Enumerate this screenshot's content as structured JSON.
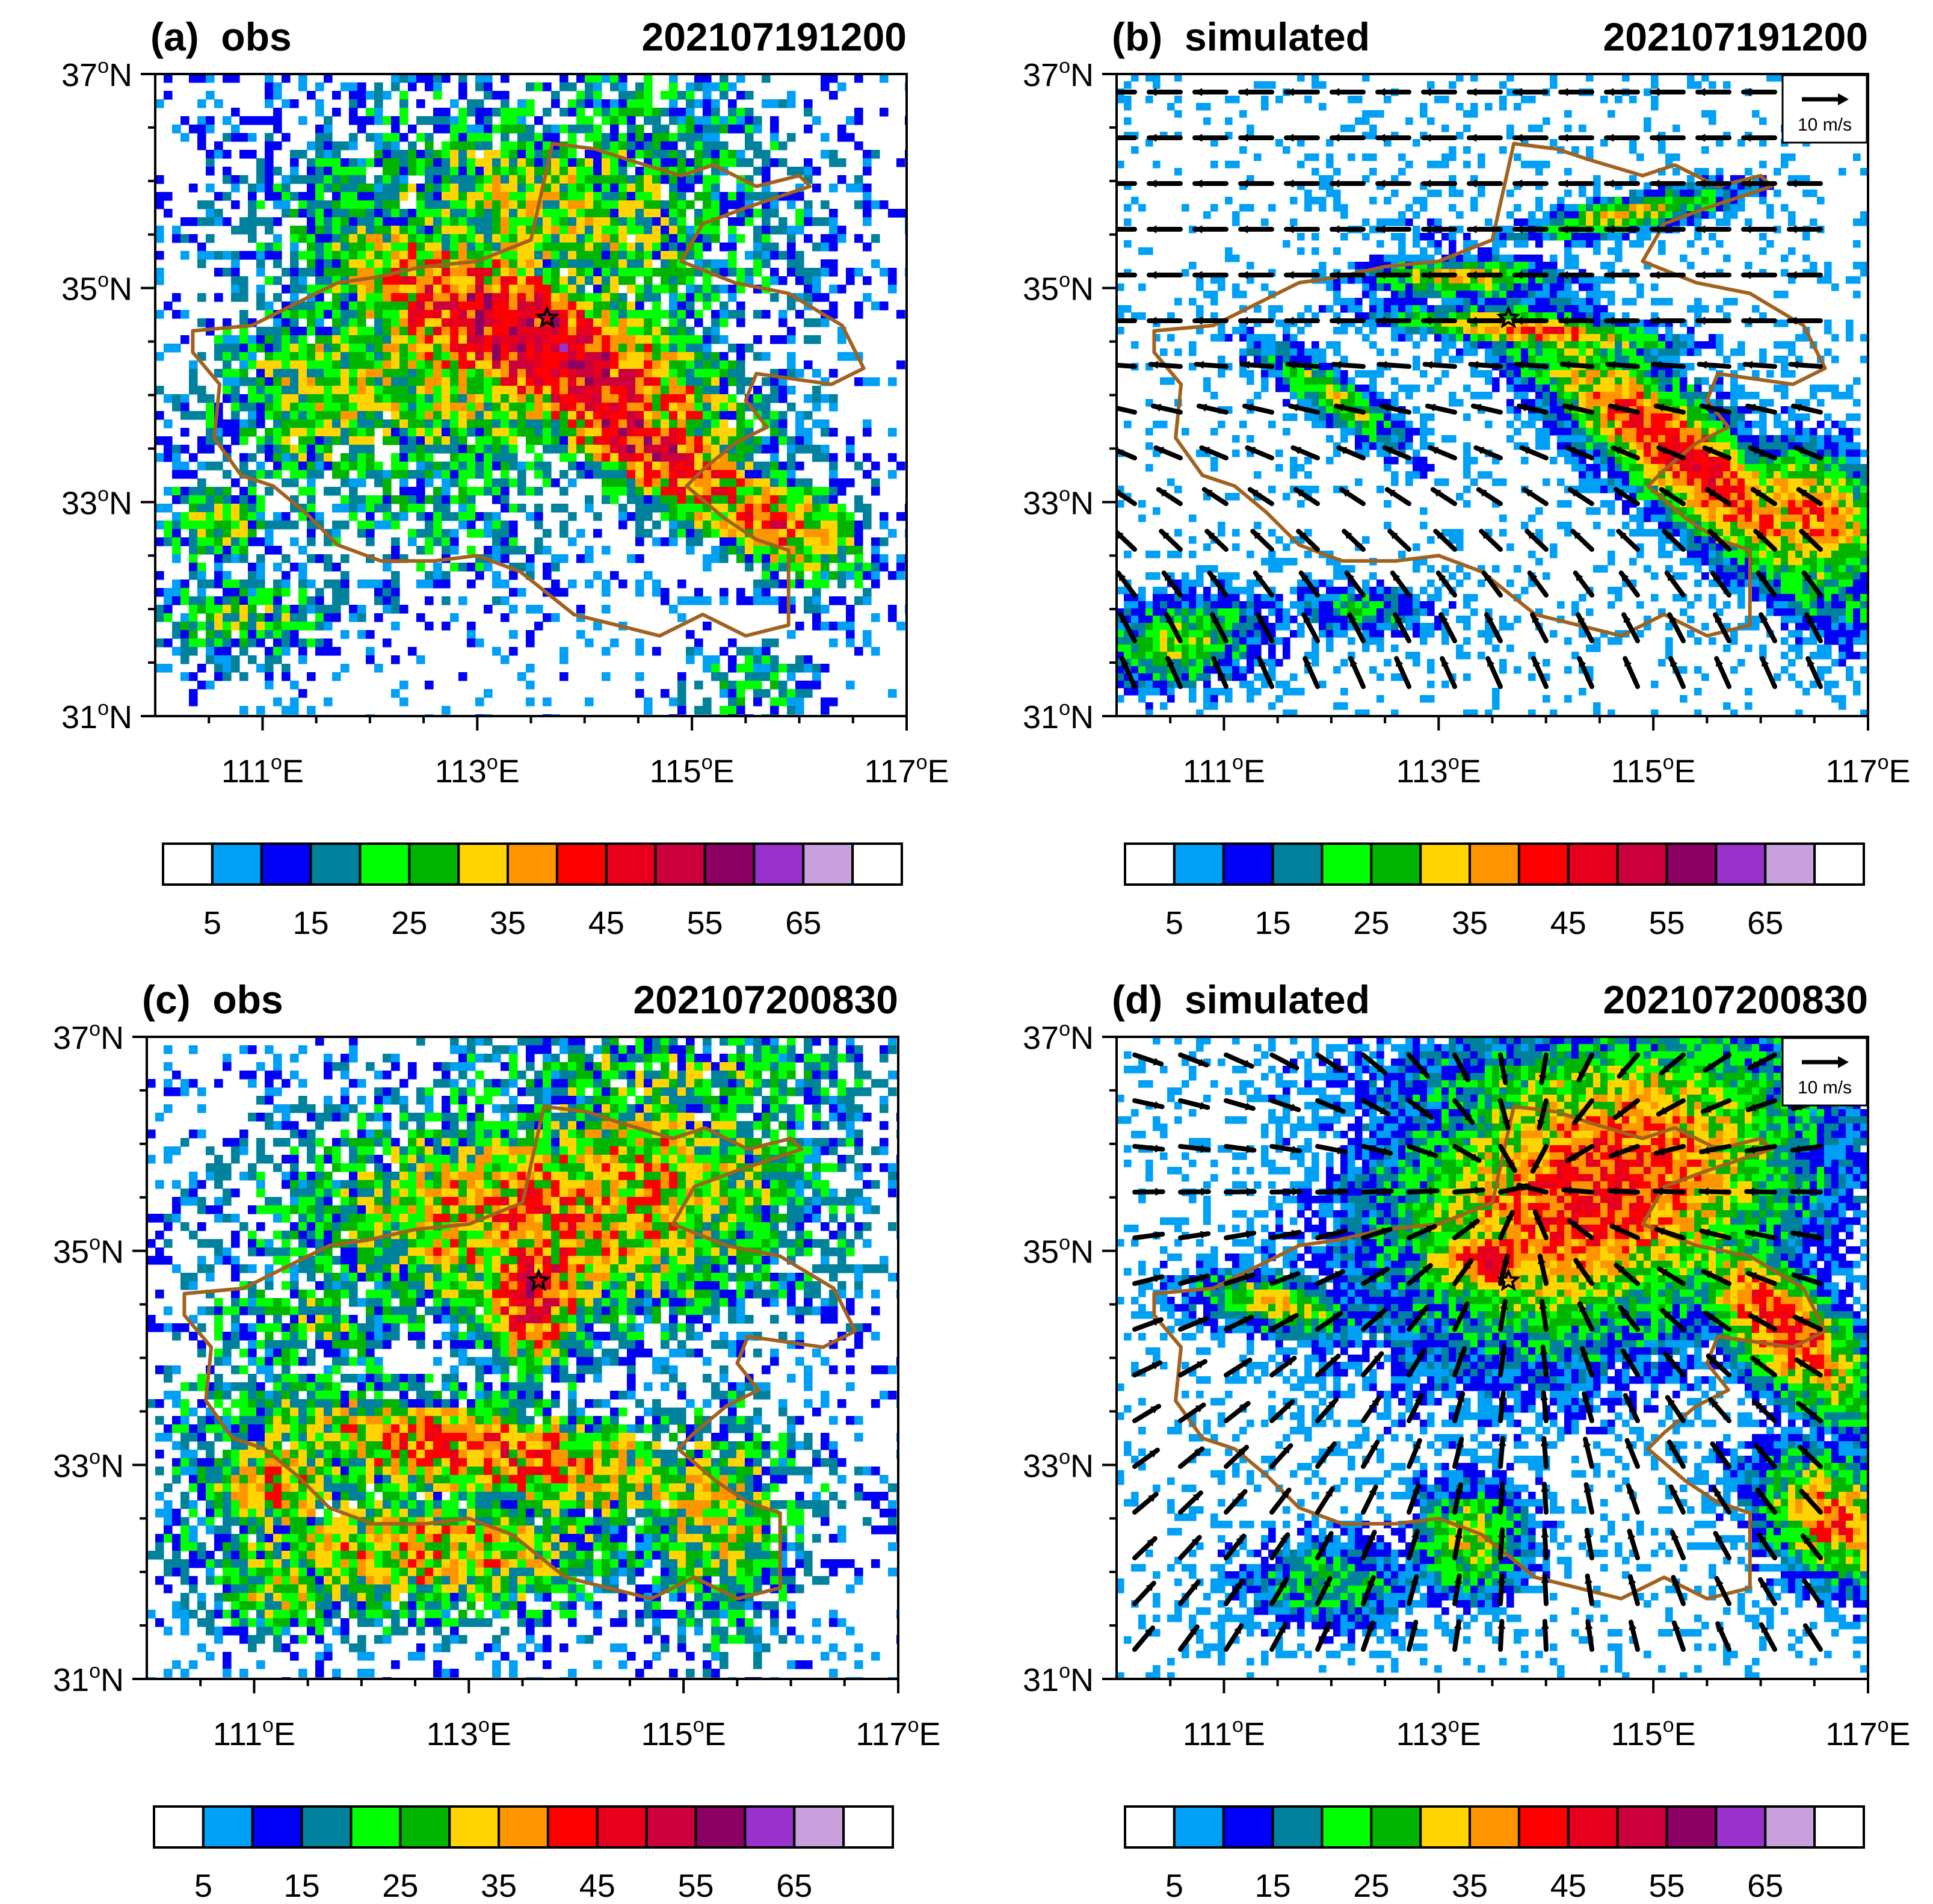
{
  "figure": {
    "panels": [
      {
        "id": "a",
        "label": "(a)  obs",
        "time": "202107191200",
        "kind": "obs",
        "has_wind": false
      },
      {
        "id": "b",
        "label": "(b)  simulated",
        "time": "202107191200",
        "kind": "sim",
        "has_wind": true,
        "wind_ref": "10 m/s",
        "wind_dir": "easterly"
      },
      {
        "id": "c",
        "label": "(c)  obs",
        "time": "202107200830",
        "kind": "obs",
        "has_wind": false
      },
      {
        "id": "d",
        "label": "(d)  simulated",
        "time": "202107200830",
        "kind": "sim",
        "has_wind": true,
        "wind_ref": "10 m/s",
        "wind_dir": "convergent"
      }
    ],
    "axes": {
      "lon_range": [
        110,
        117
      ],
      "lat_range": [
        31,
        37
      ],
      "lon_ticks": [
        {
          "value": 111,
          "deg": "111",
          "sup": "o",
          "hemi": "E"
        },
        {
          "value": 113,
          "deg": "113",
          "sup": "o",
          "hemi": "E"
        },
        {
          "value": 115,
          "deg": "115",
          "sup": "o",
          "hemi": "E"
        },
        {
          "value": 117,
          "deg": "117",
          "sup": "o",
          "hemi": "E"
        }
      ],
      "lat_ticks": [
        {
          "value": 31,
          "deg": "31",
          "sup": "o",
          "hemi": "N"
        },
        {
          "value": 33,
          "deg": "33",
          "sup": "o",
          "hemi": "N"
        },
        {
          "value": 35,
          "deg": "35",
          "sup": "o",
          "hemi": "N"
        },
        {
          "value": 37,
          "deg": "37",
          "sup": "o",
          "hemi": "N"
        }
      ]
    },
    "colorbar": {
      "colors": [
        "#ffffff",
        "#00a0f6",
        "#0000f6",
        "#00829c",
        "#00ff00",
        "#00b400",
        "#ffd400",
        "#ff9600",
        "#ff0000",
        "#e6001e",
        "#cc003c",
        "#8c0064",
        "#9932cc",
        "#c8a0dc",
        "#ffffff"
      ],
      "labels": [
        "5",
        "15",
        "25",
        "35",
        "45",
        "55",
        "65"
      ]
    },
    "colors": {
      "boundary": "#a0621e",
      "vector": "#000000",
      "frame": "#000000"
    },
    "marker": {
      "lon": 113.65,
      "lat": 34.72,
      "symbol": "star"
    }
  }
}
